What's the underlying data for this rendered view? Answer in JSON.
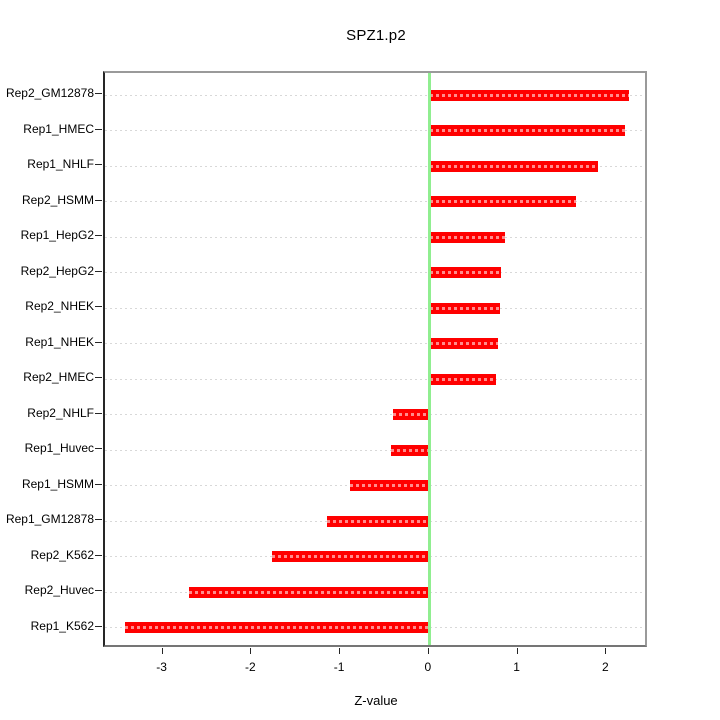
{
  "chart_data": {
    "type": "bar",
    "orientation": "horizontal",
    "title": "SPZ1.p2",
    "xlabel": "Z-value",
    "ylabel": "",
    "categories": [
      "Rep2_GM12878",
      "Rep1_HMEC",
      "Rep1_NHLF",
      "Rep2_HSMM",
      "Rep1_HepG2",
      "Rep2_HepG2",
      "Rep2_NHEK",
      "Rep1_NHEK",
      "Rep2_HMEC",
      "Rep2_NHLF",
      "Rep1_Huvec",
      "Rep1_HSMM",
      "Rep1_GM12878",
      "Rep2_K562",
      "Rep2_Huvec",
      "Rep1_K562"
    ],
    "values": [
      2.24,
      2.2,
      1.89,
      1.65,
      0.85,
      0.8,
      0.79,
      0.77,
      0.75,
      -0.41,
      -0.44,
      -0.9,
      -1.16,
      -1.78,
      -2.71,
      -3.43
    ],
    "x_ticks": [
      -3,
      -2,
      -1,
      0,
      1,
      2
    ],
    "x_tick_labels": [
      "-3",
      "-2",
      "-1",
      "0",
      "1",
      "2"
    ],
    "xlim": [
      -3.66,
      2.47
    ],
    "zero_reference_line": 0,
    "grid": "dotted-horizontal-per-category",
    "legend": "none",
    "colors": {
      "bar": "#ff0000",
      "zero_line": "#90ee90",
      "gridline": "#d8d8d8",
      "box_border": "#9a9a9a",
      "axis": "#262626",
      "text": "#000000",
      "background": "#ffffff"
    }
  }
}
